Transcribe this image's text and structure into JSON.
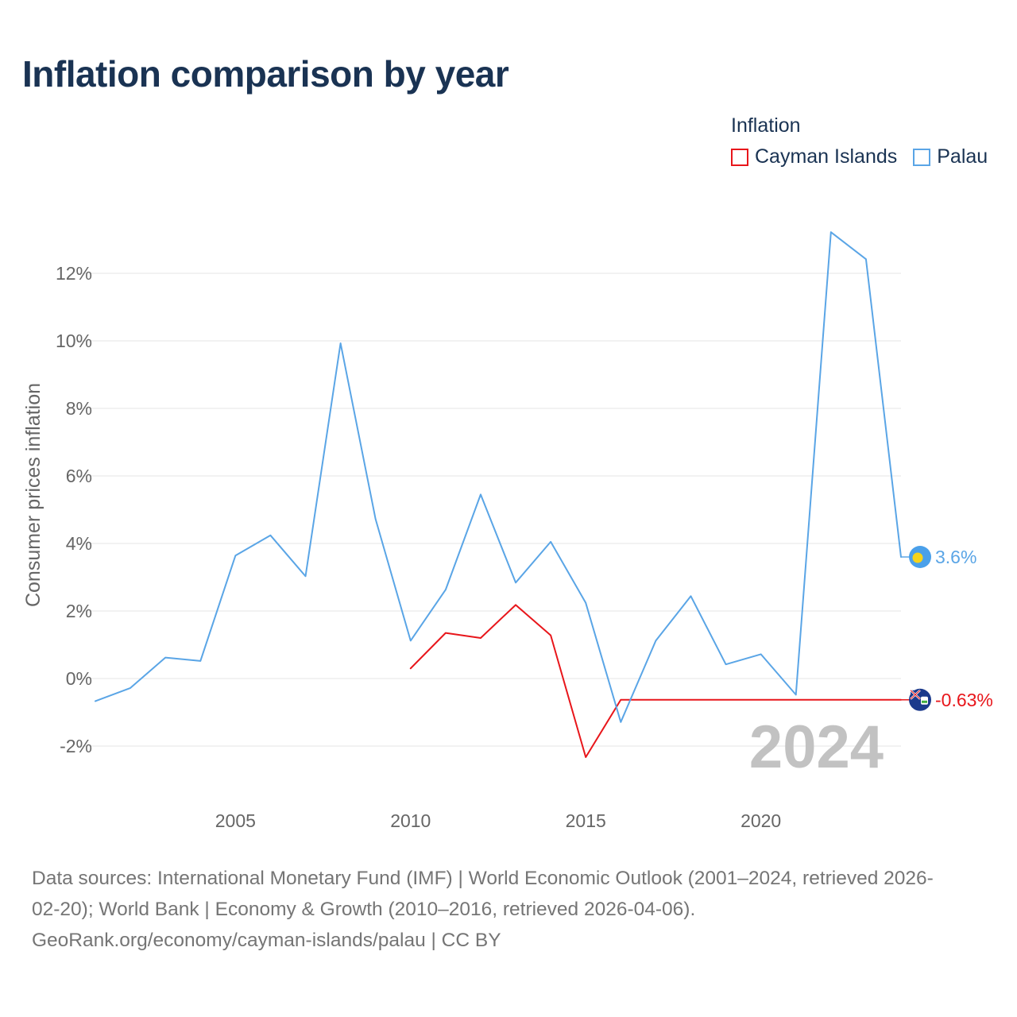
{
  "title": "Inflation comparison by year",
  "legend": {
    "title": "Inflation",
    "items": [
      {
        "label": "Cayman Islands",
        "color": "#e8161b"
      },
      {
        "label": "Palau",
        "color": "#5aa5e6"
      }
    ]
  },
  "chart_data": {
    "type": "line",
    "title": "Inflation comparison by year",
    "xlabel": "",
    "ylabel": "Consumer prices inflation",
    "xlim": [
      2001,
      2024
    ],
    "ylim": [
      -3,
      14
    ],
    "y_ticks": [
      {
        "value": -2,
        "label": "-2%"
      },
      {
        "value": 0,
        "label": "0%"
      },
      {
        "value": 2,
        "label": "2%"
      },
      {
        "value": 4,
        "label": "4%"
      },
      {
        "value": 6,
        "label": "6%"
      },
      {
        "value": 8,
        "label": "8%"
      },
      {
        "value": 10,
        "label": "10%"
      },
      {
        "value": 12,
        "label": "12%"
      }
    ],
    "x_ticks": [
      {
        "value": 2005,
        "label": "2005"
      },
      {
        "value": 2010,
        "label": "2010"
      },
      {
        "value": 2015,
        "label": "2015"
      },
      {
        "value": 2020,
        "label": "2020"
      }
    ],
    "grid": true,
    "watermark_year": "2024",
    "series": [
      {
        "name": "Cayman Islands",
        "color": "#e8161b",
        "x": [
          2010,
          2011,
          2012,
          2013,
          2014,
          2015,
          2016,
          2024
        ],
        "values": [
          0.3,
          1.35,
          1.2,
          2.18,
          1.28,
          -2.33,
          -0.63,
          -0.63
        ],
        "end_label": "-0.63%",
        "flag": "cayman-islands-flag-icon"
      },
      {
        "name": "Palau",
        "color": "#5aa5e6",
        "x": [
          2001,
          2002,
          2003,
          2004,
          2005,
          2006,
          2007,
          2008,
          2009,
          2010,
          2011,
          2012,
          2013,
          2014,
          2015,
          2016,
          2017,
          2018,
          2019,
          2020,
          2021,
          2022,
          2023,
          2024
        ],
        "values": [
          -0.67,
          -0.28,
          0.62,
          0.52,
          3.64,
          4.24,
          3.03,
          9.93,
          4.72,
          1.12,
          2.63,
          5.45,
          2.84,
          4.05,
          2.24,
          -1.29,
          1.12,
          2.44,
          0.42,
          0.72,
          -0.48,
          13.22,
          12.42,
          3.6
        ],
        "end_label": "3.6%",
        "flag": "palau-flag-icon"
      }
    ]
  },
  "footer": {
    "source_line1": "Data sources: International Monetary Fund (IMF) | World Economic Outlook (2001–2024, retrieved 2026-",
    "source_line2": "02-20); World Bank | Economy & Growth (2010–2016, retrieved 2026-04-06).",
    "site_line": "GeoRank.org/economy/cayman-islands/palau | CC BY"
  }
}
